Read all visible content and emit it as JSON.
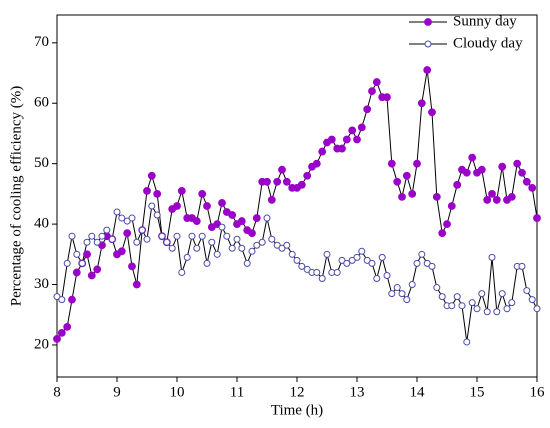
{
  "chart_data": {
    "type": "line",
    "x_label": "Time (h)",
    "y_label": "Percentage of cooling efficiency (%)",
    "xlim": [
      8,
      16
    ],
    "xticks": [
      8,
      9,
      10,
      11,
      12,
      13,
      14,
      15,
      16
    ],
    "ylim": [
      14.7,
      74.6
    ],
    "yticks": [
      20,
      30,
      40,
      50,
      60,
      70
    ],
    "legend": "upper right",
    "line_color": "#000000",
    "x": [
      8,
      8.08,
      8.17,
      8.25,
      8.33,
      8.42,
      8.5,
      8.58,
      8.67,
      8.75,
      8.83,
      8.92,
      9,
      9.08,
      9.17,
      9.25,
      9.33,
      9.42,
      9.5,
      9.58,
      9.67,
      9.75,
      9.83,
      9.92,
      10,
      10.08,
      10.17,
      10.25,
      10.33,
      10.42,
      10.5,
      10.58,
      10.67,
      10.75,
      10.83,
      10.92,
      11,
      11.08,
      11.17,
      11.25,
      11.33,
      11.42,
      11.5,
      11.58,
      11.67,
      11.75,
      11.83,
      11.92,
      12,
      12.08,
      12.17,
      12.25,
      12.33,
      12.42,
      12.5,
      12.58,
      12.67,
      12.75,
      12.83,
      12.92,
      13,
      13.08,
      13.17,
      13.25,
      13.33,
      13.42,
      13.5,
      13.58,
      13.67,
      13.75,
      13.83,
      13.92,
      14,
      14.08,
      14.17,
      14.25,
      14.33,
      14.42,
      14.5,
      14.58,
      14.67,
      14.75,
      14.83,
      14.92,
      15,
      15.08,
      15.17,
      15.25,
      15.33,
      15.42,
      15.5,
      15.58,
      15.67,
      15.75,
      15.83,
      15.92,
      16
    ],
    "series": [
      {
        "name": "Sunny day",
        "color": "#9b00c8",
        "marker": "filled",
        "values": [
          21,
          22,
          23,
          27.5,
          32,
          33.5,
          35,
          31.5,
          32.5,
          36.5,
          38,
          37.5,
          35,
          35.5,
          38.5,
          33,
          30,
          39,
          45.5,
          48,
          45,
          38,
          37,
          42.5,
          43,
          45.5,
          41,
          41,
          40.5,
          45,
          43,
          39.5,
          40,
          43.5,
          42,
          41.5,
          40,
          40.5,
          39,
          38.5,
          41,
          47,
          47,
          44,
          47,
          49,
          47,
          46,
          46,
          46.5,
          48,
          49.5,
          50,
          52,
          53.5,
          54,
          52.5,
          52.5,
          54,
          55.5,
          54,
          56,
          59,
          62,
          63.5,
          61,
          61,
          50,
          47,
          44.5,
          48,
          45,
          50,
          60,
          65.5,
          58.5,
          44.5,
          38.5,
          40,
          43,
          46.5,
          49,
          48.5,
          51,
          48.5,
          49,
          44,
          45,
          44,
          49.5,
          44,
          44.5,
          50,
          48.5,
          47,
          46,
          41
        ]
      },
      {
        "name": "Cloudy day",
        "color": "#4a4aa8",
        "marker": "open",
        "values": [
          28,
          27.5,
          33.5,
          38,
          35,
          33.5,
          37,
          38,
          37,
          38,
          39,
          37.5,
          42,
          41,
          40.5,
          41,
          37,
          39,
          37.5,
          43,
          41.5,
          38,
          37,
          36,
          38,
          32,
          34.5,
          38,
          36,
          38,
          33.5,
          37,
          35,
          39.5,
          38,
          36,
          37.5,
          36,
          33.5,
          35.5,
          36.5,
          37,
          41,
          37.5,
          36.5,
          36,
          36.5,
          35,
          34,
          33,
          32.5,
          32,
          32,
          31,
          35,
          32,
          32,
          34,
          33.5,
          34,
          34.5,
          35.5,
          34,
          33.5,
          31,
          34.5,
          31.5,
          28.5,
          29.5,
          28.5,
          27.5,
          30,
          33.5,
          35,
          33.5,
          33,
          29.5,
          28,
          26.5,
          26.5,
          28,
          26.5,
          20.5,
          27,
          26,
          28.5,
          25.5,
          34.5,
          25.5,
          28.5,
          26,
          27,
          33,
          33,
          29,
          27.5,
          26
        ]
      }
    ]
  }
}
